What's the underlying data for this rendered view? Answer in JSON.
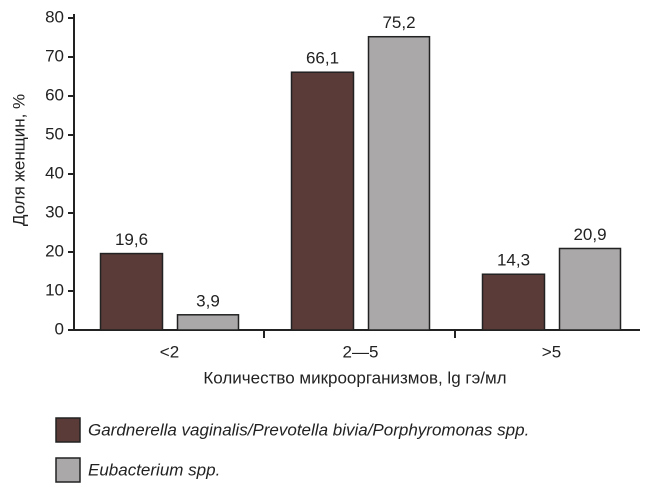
{
  "chart_data": {
    "type": "bar",
    "categories": [
      "<2",
      "2—5",
      ">5"
    ],
    "series": [
      {
        "name": "Gardnerella vaginalis/Prevotella bivia/Porphyromonas spp.",
        "color": "#5b3b37",
        "values": [
          19.6,
          66.1,
          14.3
        ],
        "value_labels": [
          "19,6",
          "66,1",
          "14,3"
        ]
      },
      {
        "name": "Eubacterium spp.",
        "color": "#aaa8a8",
        "values": [
          3.9,
          75.2,
          20.9
        ],
        "value_labels": [
          "3,9",
          "75,2",
          "20,9"
        ]
      }
    ],
    "ylabel": "Доля женщин, %",
    "xlabel": "Количество микроорганизмов, lg гэ/мл",
    "ylim": [
      0,
      80
    ],
    "yticks": [
      0,
      10,
      20,
      30,
      40,
      50,
      60,
      70,
      80
    ],
    "grid": false
  }
}
